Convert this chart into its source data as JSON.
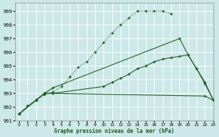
{
  "xlabel": "Graphe pression niveau de la mer (hPa)",
  "bg_color": "#cce8e8",
  "grid_color": "#ffffff",
  "line_color": "#1a5c1a",
  "ylim": [
    991,
    999.6
  ],
  "xlim": [
    -0.5,
    23
  ],
  "yticks": [
    991,
    992,
    993,
    994,
    995,
    996,
    997,
    998,
    999
  ],
  "xticks": [
    0,
    1,
    2,
    3,
    4,
    5,
    6,
    7,
    8,
    9,
    10,
    11,
    12,
    13,
    14,
    15,
    16,
    17,
    18,
    19,
    20,
    21,
    22,
    23
  ],
  "series": [
    {
      "x": [
        0,
        1,
        2,
        3,
        4,
        5,
        6,
        7,
        8,
        9,
        10,
        11,
        12,
        13,
        14,
        15,
        16,
        17,
        18
      ],
      "y": [
        991.5,
        992.1,
        992.5,
        992.9,
        993.1,
        993.5,
        994.2,
        994.9,
        995.3,
        996.0,
        996.7,
        997.4,
        998.0,
        998.5,
        999.0,
        999.0,
        999.0,
        999.0,
        998.8
      ]
    },
    {
      "comment": "Line 2: straight from 0 to 19(997), then down steeply 19-23, markers at 0,2,3,4,19,20,21,22,23",
      "x": [
        0,
        2,
        3,
        4,
        19,
        20,
        21,
        22,
        23
      ],
      "y": [
        991.5,
        992.5,
        993.0,
        993.4,
        997.0,
        995.8,
        994.8,
        993.7,
        992.5
      ]
    },
    {
      "comment": "Line 3: nearly flat around 992.8-993 from 0 to 23, markers at 0,2,3,4,22,23",
      "x": [
        0,
        2,
        3,
        4,
        22,
        23
      ],
      "y": [
        991.5,
        992.5,
        993.0,
        993.0,
        992.8,
        992.5
      ]
    },
    {
      "x": [
        0,
        2,
        3,
        4,
        10,
        11,
        12,
        13,
        14,
        15,
        16,
        17,
        18,
        19,
        20,
        21,
        22,
        23
      ],
      "y": [
        991.5,
        992.5,
        993.0,
        993.0,
        993.5,
        993.8,
        994.1,
        994.4,
        994.8,
        995.0,
        995.3,
        995.5,
        995.6,
        995.7,
        995.8,
        994.8,
        993.8,
        992.5
      ]
    }
  ]
}
